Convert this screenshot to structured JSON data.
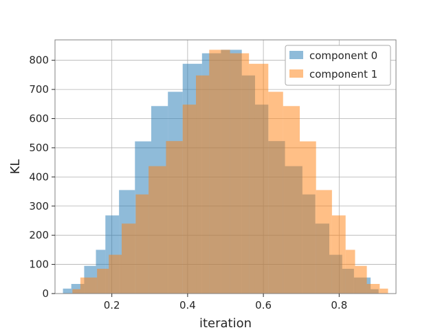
{
  "chart_data": {
    "type": "histogram",
    "xlabel": "iteration",
    "ylabel": "KL",
    "xlim": [
      0.05,
      0.95
    ],
    "ylim": [
      0,
      870
    ],
    "xticks": [
      0.2,
      0.4,
      0.6,
      0.8
    ],
    "xtick_labels": [
      "0.2",
      "0.4",
      "0.6",
      "0.8"
    ],
    "yticks": [
      0,
      100,
      200,
      300,
      400,
      500,
      600,
      700,
      800
    ],
    "ytick_labels": [
      "0",
      "100",
      "200",
      "300",
      "400",
      "500",
      "600",
      "700",
      "800"
    ],
    "grid": true,
    "legend_position": "top-right",
    "series": [
      {
        "name": "component 0",
        "color": "#1f77b4",
        "alpha": 0.5,
        "bins": [
          [
            0.071,
            0.093,
            17
          ],
          [
            0.093,
            0.127,
            33
          ],
          [
            0.127,
            0.158,
            95
          ],
          [
            0.158,
            0.183,
            150
          ],
          [
            0.183,
            0.219,
            268
          ],
          [
            0.219,
            0.261,
            355
          ],
          [
            0.261,
            0.304,
            522
          ],
          [
            0.304,
            0.348,
            643
          ],
          [
            0.348,
            0.387,
            692
          ],
          [
            0.387,
            0.438,
            788
          ],
          [
            0.438,
            0.488,
            824
          ],
          [
            0.488,
            0.543,
            836
          ],
          [
            0.543,
            0.578,
            748
          ],
          [
            0.578,
            0.613,
            648
          ],
          [
            0.613,
            0.657,
            523
          ],
          [
            0.657,
            0.703,
            437
          ],
          [
            0.703,
            0.737,
            340
          ],
          [
            0.737,
            0.774,
            240
          ],
          [
            0.774,
            0.808,
            133
          ],
          [
            0.808,
            0.839,
            85
          ],
          [
            0.839,
            0.883,
            55
          ],
          [
            0.883,
            0.904,
            15
          ]
        ]
      },
      {
        "name": "component 1",
        "color": "#ff7f0e",
        "alpha": 0.5,
        "bins": [
          [
            0.096,
            0.117,
            15
          ],
          [
            0.117,
            0.161,
            55
          ],
          [
            0.161,
            0.192,
            85
          ],
          [
            0.192,
            0.226,
            133
          ],
          [
            0.226,
            0.263,
            240
          ],
          [
            0.263,
            0.297,
            340
          ],
          [
            0.297,
            0.343,
            437
          ],
          [
            0.343,
            0.387,
            523
          ],
          [
            0.387,
            0.422,
            648
          ],
          [
            0.422,
            0.457,
            748
          ],
          [
            0.457,
            0.512,
            836
          ],
          [
            0.512,
            0.562,
            824
          ],
          [
            0.562,
            0.613,
            788
          ],
          [
            0.613,
            0.652,
            692
          ],
          [
            0.652,
            0.696,
            643
          ],
          [
            0.696,
            0.739,
            522
          ],
          [
            0.739,
            0.781,
            355
          ],
          [
            0.781,
            0.817,
            268
          ],
          [
            0.817,
            0.842,
            150
          ],
          [
            0.842,
            0.873,
            95
          ],
          [
            0.873,
            0.907,
            33
          ],
          [
            0.907,
            0.929,
            17
          ]
        ]
      }
    ]
  }
}
